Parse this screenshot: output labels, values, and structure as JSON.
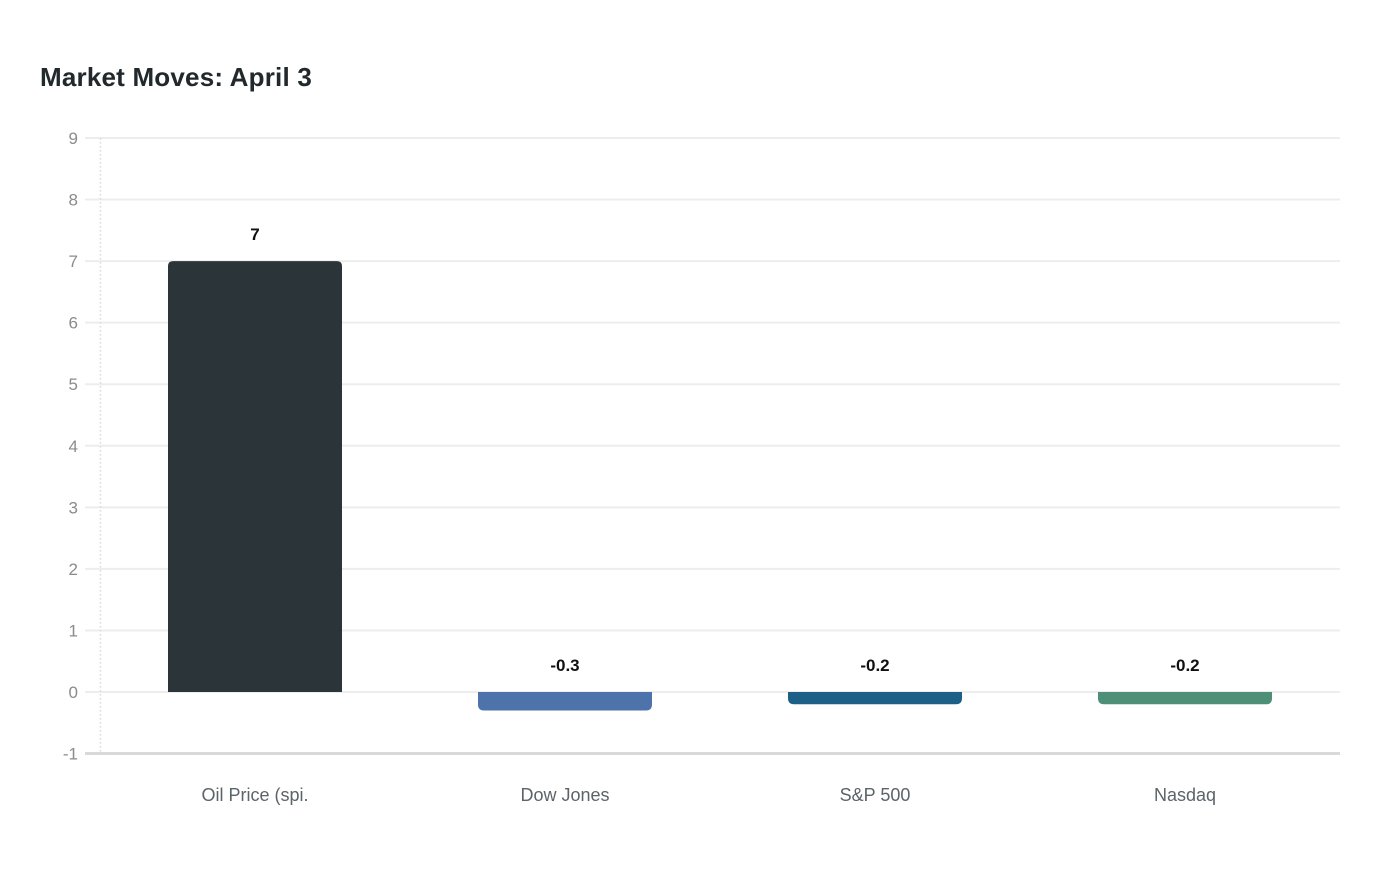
{
  "chart_data": {
    "type": "bar",
    "title": "Market Moves: April 3",
    "categories": [
      "Oil Price (spi.",
      "Dow Jones",
      "S&P 500",
      "Nasdaq"
    ],
    "values": [
      7,
      -0.3,
      -0.2,
      -0.2
    ],
    "value_labels": [
      "7",
      "-0.3",
      "-0.2",
      "-0.2"
    ],
    "bar_colors": [
      "#2b3438",
      "#4d73aa",
      "#1d6087",
      "#4e8f78"
    ],
    "yticks": [
      9,
      8,
      7,
      6,
      5,
      4,
      3,
      2,
      1,
      0,
      -1
    ],
    "ylim": [
      -1,
      9
    ],
    "grid": true,
    "legend_position": "none",
    "xlabel": "",
    "ylabel": "",
    "colors": {
      "title": "#21292c",
      "grid_line": "#ededed",
      "grid_line_bottom": "#d9d9d9",
      "axis_dotted_line": "#d9d9d9",
      "y_tick_label": "#8b8b8b",
      "x_tick_label": "#5b6469",
      "value_label": "#101010",
      "background": "#ffffff"
    }
  }
}
